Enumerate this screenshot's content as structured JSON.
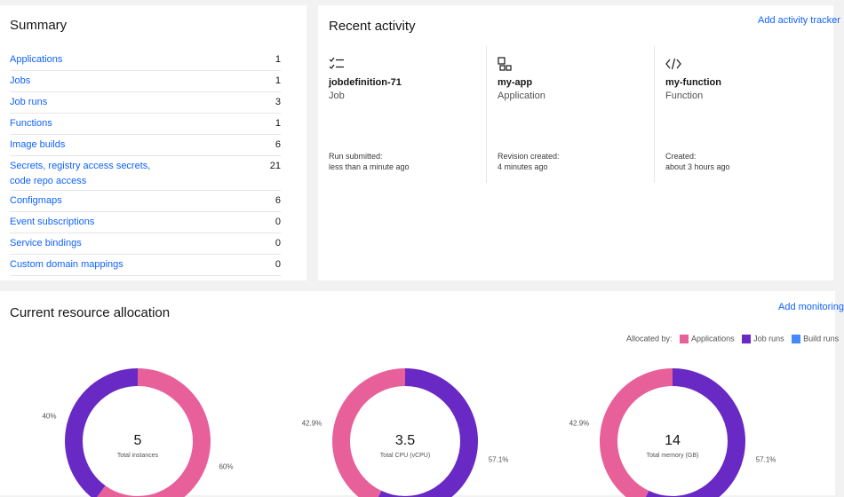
{
  "summary": {
    "title": "Summary",
    "rows": [
      {
        "label": "Applications",
        "count": "1"
      },
      {
        "label": "Jobs",
        "count": "1"
      },
      {
        "label": "Job runs",
        "count": "3"
      },
      {
        "label": "Functions",
        "count": "1"
      },
      {
        "label": "Image builds",
        "count": "6"
      },
      {
        "label_line1": "Secrets, registry access secrets,",
        "label_line2": "code repo access",
        "count": "21"
      },
      {
        "label": "Configmaps",
        "count": "6"
      },
      {
        "label": "Event subscriptions",
        "count": "0"
      },
      {
        "label": "Service bindings",
        "count": "0"
      },
      {
        "label": "Custom domain mappings",
        "count": "0"
      }
    ]
  },
  "recent": {
    "title": "Recent activity",
    "add_link": "Add activity tracker",
    "items": [
      {
        "icon": "checklist-icon",
        "name": "jobdefinition-71",
        "type": "Job",
        "event": "Run submitted:",
        "when": "less than a minute ago"
      },
      {
        "icon": "application-icon",
        "name": "my-app",
        "type": "Application",
        "event": "Revision created:",
        "when": "4 minutes ago"
      },
      {
        "icon": "code-icon",
        "name": "my-function",
        "type": "Function",
        "event": "Created:",
        "when": "about 3 hours ago"
      }
    ]
  },
  "resource": {
    "title": "Current resource allocation",
    "add_link": "Add monitoring",
    "legend_label": "Allocated by:",
    "legend": [
      {
        "name": "Applications",
        "color": "#e8609a"
      },
      {
        "name": "Job runs",
        "color": "#6929c4"
      },
      {
        "name": "Build runs",
        "color": "#4589ff"
      }
    ]
  },
  "chart_data": [
    {
      "type": "pie",
      "value_label": "5",
      "subtitle": "Total instances",
      "slices": [
        {
          "name": "Applications",
          "value": 60,
          "label": "60%"
        },
        {
          "name": "Job runs",
          "value": 40,
          "label": "40%"
        }
      ]
    },
    {
      "type": "pie",
      "value_label": "3.5",
      "subtitle": "Total CPU (vCPU)",
      "slices": [
        {
          "name": "Job runs",
          "value": 57.1,
          "label": "57.1%"
        },
        {
          "name": "Applications",
          "value": 42.9,
          "label": "42.9%"
        }
      ]
    },
    {
      "type": "pie",
      "value_label": "14",
      "subtitle": "Total memory (GB)",
      "slices": [
        {
          "name": "Job runs",
          "value": 57.1,
          "label": "57.1%"
        },
        {
          "name": "Applications",
          "value": 42.9,
          "label": "42.9%"
        }
      ]
    }
  ]
}
